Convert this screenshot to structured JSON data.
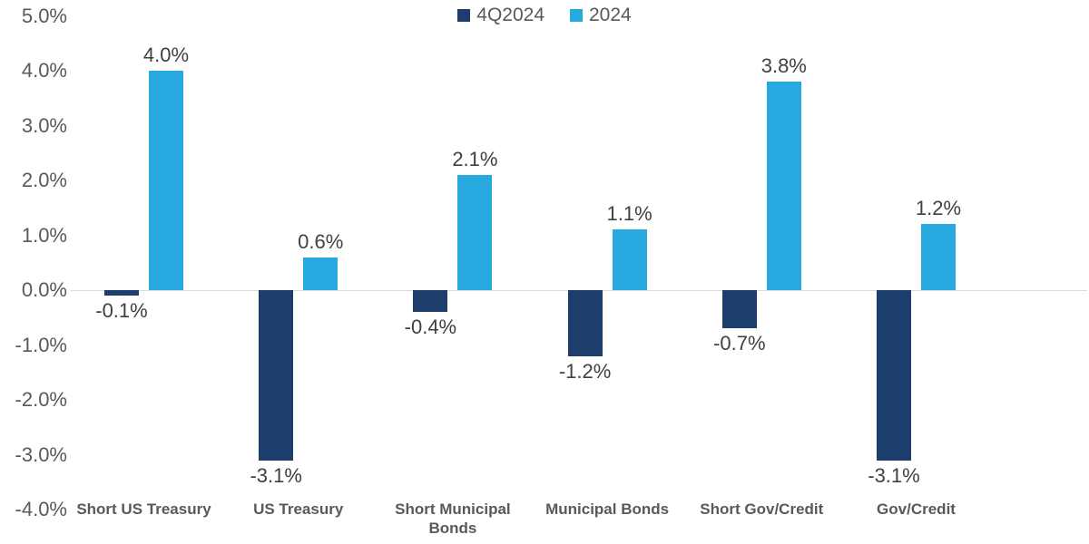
{
  "chart_data": {
    "type": "bar",
    "title": "",
    "xlabel": "",
    "ylabel": "",
    "categories": [
      "Short US Treasury",
      "US Treasury",
      "Short Municipal Bonds",
      "Municipal Bonds",
      "Short Gov/Credit",
      "Gov/Credit"
    ],
    "series": [
      {
        "name": "4Q2024",
        "color": "#1d3e6d",
        "values": [
          -0.1,
          -3.1,
          -0.4,
          -1.2,
          -0.7,
          -3.1
        ],
        "labels": [
          "-0.1%",
          "-3.1%",
          "-0.4%",
          "-1.2%",
          "-0.7%",
          "-3.1%"
        ]
      },
      {
        "name": "2024",
        "color": "#27a8df",
        "values": [
          4.0,
          0.6,
          2.1,
          1.1,
          3.8,
          1.2
        ],
        "labels": [
          "4.0%",
          "0.6%",
          "2.1%",
          "1.1%",
          "3.8%",
          "1.2%"
        ]
      }
    ],
    "yticks": [
      5.0,
      4.0,
      3.0,
      2.0,
      1.0,
      0.0,
      -1.0,
      -2.0,
      -3.0,
      -4.0
    ],
    "ytick_labels": [
      "5.0%",
      "4.0%",
      "3.0%",
      "2.0%",
      "1.0%",
      "0.0%",
      "-1.0%",
      "-2.0%",
      "-3.0%",
      "-4.0%"
    ],
    "ylim": [
      -4.0,
      5.0
    ],
    "grid": false,
    "legend_position": "top-center"
  },
  "colors": {
    "series_4q2024": "#1d3e6d",
    "series_2024": "#27a8df",
    "axis_text": "#595959",
    "value_text": "#404040",
    "zero_line": "#d9d9d9",
    "background": "#ffffff"
  }
}
